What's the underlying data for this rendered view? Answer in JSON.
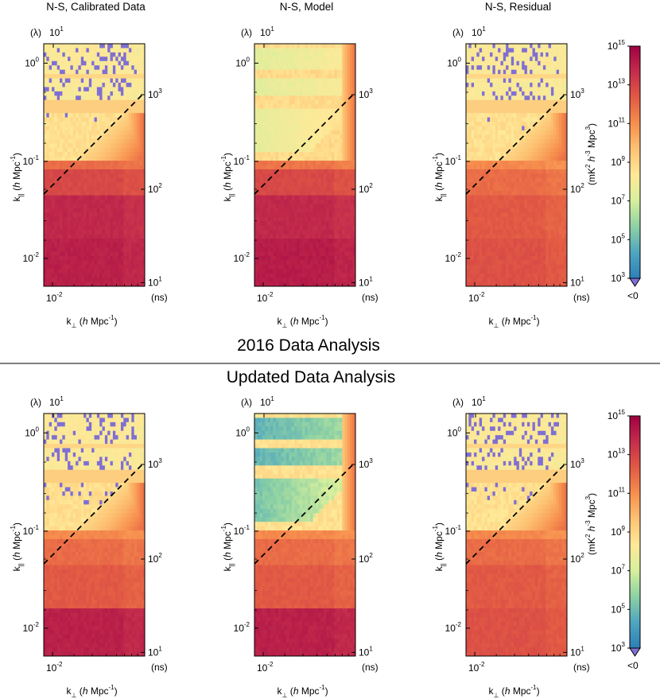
{
  "sections": {
    "top": "2016 Data Analysis",
    "bottom": "Updated Data Analysis"
  },
  "colorbar": {
    "label_pre": "(mK",
    "label_sup1": "2",
    "label_h": " h",
    "label_sup2": "-3",
    "label_mid": " Mpc",
    "label_sup3": "3",
    "label_post": ")",
    "tick_base": "10",
    "tick_exponents": [
      "15",
      "13",
      "11",
      "9",
      "7",
      "5",
      "3"
    ],
    "under_label": "<0",
    "under_color": "#7f6fd4",
    "colors": [
      "#2c7fb8",
      "#4fa6c0",
      "#8dd1a4",
      "#d7ef9c",
      "#fee998",
      "#fdc273",
      "#f78f4e",
      "#e25a44",
      "#c42d4c",
      "#9e0142"
    ]
  },
  "axes_text": {
    "ypar_k": "k",
    "ypar_sub": "||",
    "ypar_paren_open": " (",
    "ypar_h": "h",
    "ypar_mpc": " Mpc",
    "ypar_sup": "-1",
    "ypar_paren_close": ")",
    "xperp_k": "k",
    "xperp_sub": "⊥",
    "xperp_paren_open": " (",
    "xperp_h": "h",
    "xperp_mpc": " Mpc",
    "xperp_sup": "-1",
    "xperp_paren_close": ")",
    "top_unit": "(λ)",
    "right_unit": "(ns)",
    "base": "10",
    "left_exps": [
      "0",
      "-1",
      "-2"
    ],
    "right_exps": [
      "3",
      "2",
      "1"
    ],
    "top_exp": "1",
    "bottom_exp": "-2"
  },
  "chart_data": [
    {
      "type": "heatmap",
      "title": "N-S, Calibrated Data",
      "xscale": "log",
      "yscale": "log",
      "ylim_k_par": [
        0.0045,
        1.6
      ],
      "xlim_k_perp": [
        0.0075,
        0.09
      ],
      "horizon_line": "dashed",
      "variant": "calibrated",
      "section": "2016 Data Analysis"
    },
    {
      "type": "heatmap",
      "title": "N-S, Model",
      "xscale": "log",
      "yscale": "log",
      "ylim_k_par": [
        0.0045,
        1.6
      ],
      "xlim_k_perp": [
        0.0075,
        0.09
      ],
      "horizon_line": "dashed",
      "variant": "model",
      "section": "2016 Data Analysis"
    },
    {
      "type": "heatmap",
      "title": "N-S, Residual",
      "xscale": "log",
      "yscale": "log",
      "ylim_k_par": [
        0.0045,
        1.6
      ],
      "xlim_k_perp": [
        0.0075,
        0.09
      ],
      "horizon_line": "dashed",
      "variant": "residual",
      "section": "2016 Data Analysis"
    },
    {
      "type": "heatmap",
      "title": "",
      "xscale": "log",
      "yscale": "log",
      "ylim_k_par": [
        0.0045,
        1.6
      ],
      "xlim_k_perp": [
        0.0075,
        0.09
      ],
      "horizon_line": "dashed",
      "variant": "calibrated2",
      "section": "Updated Data Analysis"
    },
    {
      "type": "heatmap",
      "title": "",
      "xscale": "log",
      "yscale": "log",
      "ylim_k_par": [
        0.0045,
        1.6
      ],
      "xlim_k_perp": [
        0.0075,
        0.09
      ],
      "horizon_line": "dashed",
      "variant": "model2",
      "section": "Updated Data Analysis"
    },
    {
      "type": "heatmap",
      "title": "",
      "xscale": "log",
      "yscale": "log",
      "ylim_k_par": [
        0.0045,
        1.6
      ],
      "xlim_k_perp": [
        0.0075,
        0.09
      ],
      "horizon_line": "dashed",
      "variant": "residual2",
      "section": "Updated Data Analysis"
    }
  ]
}
